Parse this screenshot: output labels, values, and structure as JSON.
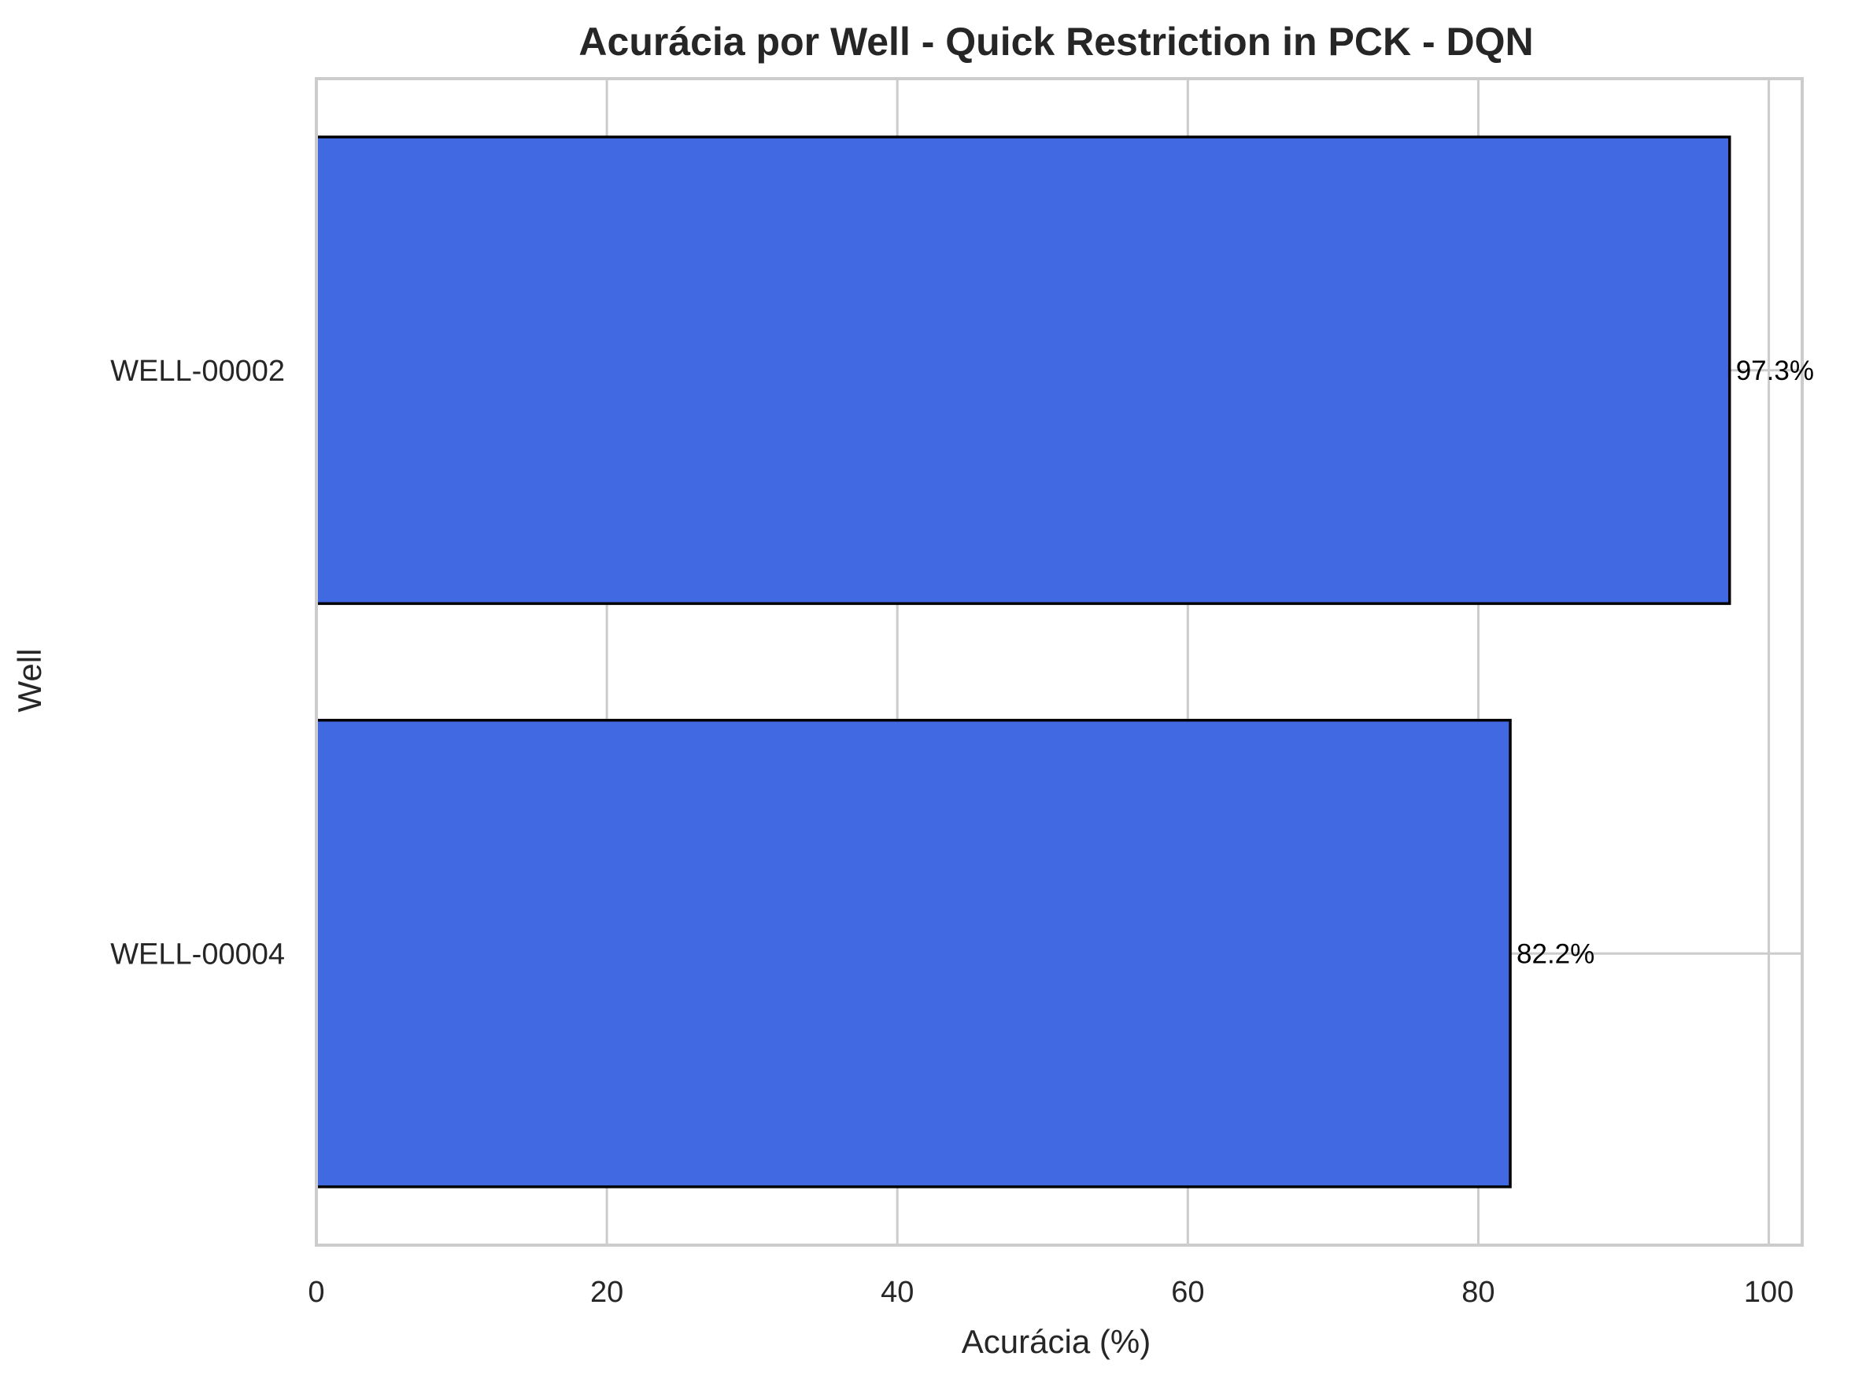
{
  "chart_data": {
    "type": "bar",
    "orientation": "horizontal",
    "title": "Acurácia por Well - Quick Restriction in PCK - DQN",
    "xlabel": "Acurácia (%)",
    "ylabel": "Well",
    "categories": [
      "WELL-00002",
      "WELL-00004"
    ],
    "values": [
      97.3,
      82.2
    ],
    "data_labels": [
      "97.3%",
      "82.2%"
    ],
    "xlim": [
      0,
      102.3
    ],
    "xticks": [
      0,
      20,
      40,
      60,
      80,
      100
    ],
    "xtick_labels": [
      "0",
      "20",
      "40",
      "60",
      "80",
      "100"
    ],
    "grid": true,
    "legend": "none",
    "colors": {
      "bar": "#4169E1",
      "bar_edge": "#000000",
      "grid": "#cccccc",
      "spine": "#cccccc",
      "text": "#262626"
    }
  }
}
